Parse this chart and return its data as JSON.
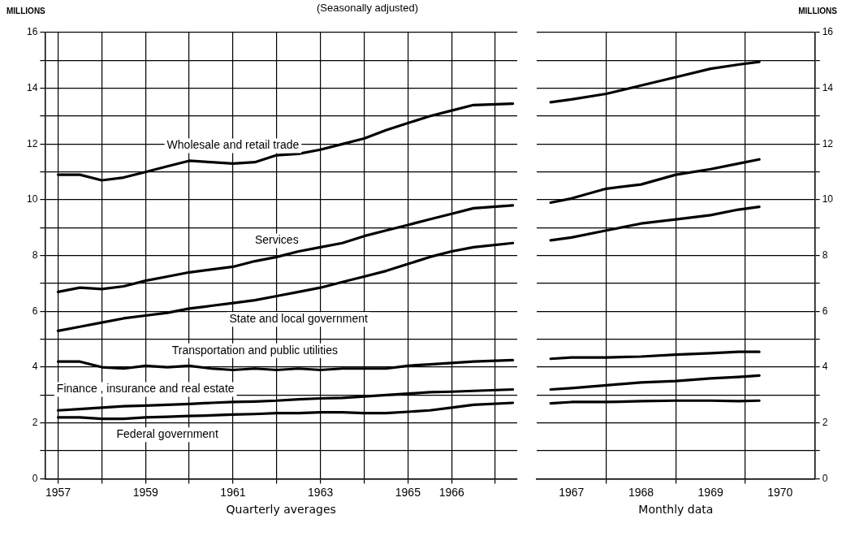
{
  "chart_data": [
    {
      "type": "line",
      "title": "(Seasonally adjusted)",
      "ylabel": "MILLIONS",
      "xlabel": "Quarterly averages",
      "xlim": [
        1956.7,
        1967.5
      ],
      "xticks": [
        1957,
        {
          "value": 1958,
          "label": null
        },
        1959,
        {
          "value": 1960,
          "label": null
        },
        1961,
        {
          "value": 1962,
          "label": null
        },
        1963,
        {
          "value": 1964,
          "label": null
        },
        1965,
        1966,
        {
          "value": 1967,
          "label": null
        }
      ],
      "ylim": [
        0,
        16
      ],
      "yticks": [
        0,
        {
          "value": 1,
          "label": null
        },
        2,
        {
          "value": 3,
          "label": null
        },
        4,
        {
          "value": 5,
          "label": null
        },
        6,
        {
          "value": 7,
          "label": null
        },
        8,
        {
          "value": 9,
          "label": null
        },
        10,
        {
          "value": 11,
          "label": null
        },
        12,
        {
          "value": 13,
          "label": null
        },
        14,
        {
          "value": 15,
          "label": null
        },
        16
      ],
      "grid": true,
      "legend": false,
      "marker": "none",
      "line_style": "solid",
      "x": [
        1957,
        1957.5,
        1958,
        1958.5,
        1959,
        1959.5,
        1960,
        1960.5,
        1961,
        1961.5,
        1962,
        1962.5,
        1963,
        1963.5,
        1964,
        1964.5,
        1965,
        1965.5,
        1966,
        1966.5,
        1967.4
      ],
      "series": [
        {
          "name": "Wholesale and retail trade",
          "color": "#000000",
          "values": [
            10.9,
            10.9,
            10.7,
            10.8,
            11.0,
            11.2,
            11.4,
            11.35,
            11.3,
            11.35,
            11.6,
            11.65,
            11.8,
            12.0,
            12.2,
            12.5,
            12.75,
            13.0,
            13.2,
            13.4,
            13.45
          ]
        },
        {
          "name": "Services",
          "color": "#000000",
          "values": [
            6.7,
            6.85,
            6.8,
            6.9,
            7.1,
            7.25,
            7.4,
            7.5,
            7.6,
            7.8,
            7.95,
            8.15,
            8.3,
            8.45,
            8.7,
            8.9,
            9.1,
            9.3,
            9.5,
            9.7,
            9.8
          ]
        },
        {
          "name": "State and local government",
          "color": "#000000",
          "values": [
            5.3,
            5.45,
            5.6,
            5.75,
            5.85,
            5.95,
            6.1,
            6.2,
            6.3,
            6.4,
            6.55,
            6.7,
            6.85,
            7.05,
            7.25,
            7.45,
            7.7,
            7.95,
            8.15,
            8.3,
            8.45
          ]
        },
        {
          "name": "Transportation and public utilities",
          "color": "#000000",
          "values": [
            4.2,
            4.2,
            4.0,
            3.95,
            4.05,
            4.0,
            4.05,
            3.95,
            3.9,
            3.95,
            3.9,
            3.95,
            3.9,
            3.95,
            3.95,
            3.95,
            4.05,
            4.1,
            4.15,
            4.2,
            4.25
          ]
        },
        {
          "name": "Finance , insurance and real estate",
          "color": "#000000",
          "values": [
            2.45,
            2.5,
            2.55,
            2.6,
            2.62,
            2.65,
            2.68,
            2.72,
            2.75,
            2.77,
            2.8,
            2.85,
            2.88,
            2.9,
            2.95,
            3.0,
            3.05,
            3.1,
            3.12,
            3.15,
            3.2
          ]
        },
        {
          "name": "Federal government",
          "color": "#000000",
          "values": [
            2.2,
            2.2,
            2.15,
            2.15,
            2.2,
            2.22,
            2.25,
            2.27,
            2.3,
            2.32,
            2.35,
            2.35,
            2.38,
            2.38,
            2.35,
            2.35,
            2.4,
            2.45,
            2.55,
            2.65,
            2.72
          ]
        }
      ]
    },
    {
      "type": "line",
      "ylabel": "MILLIONS",
      "xlabel": "Monthly data",
      "xlim": [
        1967,
        1971
      ],
      "xticks": [
        {
          "value": 1967.5,
          "label": "1967"
        },
        {
          "value": 1968,
          "label": null
        },
        {
          "value": 1968.5,
          "label": "1968"
        },
        {
          "value": 1969,
          "label": null
        },
        {
          "value": 1969.5,
          "label": "1969"
        },
        {
          "value": 1970,
          "label": null
        },
        {
          "value": 1970.5,
          "label": "1970"
        }
      ],
      "ylim": [
        0,
        16
      ],
      "yticks": [
        0,
        {
          "value": 1,
          "label": null
        },
        2,
        {
          "value": 3,
          "label": null
        },
        4,
        {
          "value": 5,
          "label": null
        },
        6,
        {
          "value": 7,
          "label": null
        },
        8,
        {
          "value": 9,
          "label": null
        },
        10,
        {
          "value": 11,
          "label": null
        },
        12,
        {
          "value": 13,
          "label": null
        },
        14,
        {
          "value": 15,
          "label": null
        },
        16
      ],
      "grid": true,
      "legend": false,
      "marker": "none",
      "line_style": "solid",
      "x": [
        1967.2,
        1967.5,
        1968,
        1968.5,
        1969,
        1969.5,
        1969.9,
        1970.2
      ],
      "series": [
        {
          "color": "#000000",
          "values": [
            13.5,
            13.6,
            13.8,
            14.1,
            14.4,
            14.7,
            14.85,
            14.95
          ]
        },
        {
          "color": "#000000",
          "values": [
            9.9,
            10.05,
            10.4,
            10.55,
            10.9,
            11.1,
            11.3,
            11.45
          ]
        },
        {
          "color": "#000000",
          "values": [
            8.55,
            8.65,
            8.9,
            9.15,
            9.3,
            9.45,
            9.65,
            9.75
          ]
        },
        {
          "color": "#000000",
          "values": [
            4.3,
            4.35,
            4.35,
            4.38,
            4.45,
            4.5,
            4.55,
            4.55
          ]
        },
        {
          "color": "#000000",
          "values": [
            3.2,
            3.25,
            3.35,
            3.45,
            3.5,
            3.6,
            3.65,
            3.7
          ]
        },
        {
          "color": "#000000",
          "values": [
            2.7,
            2.75,
            2.75,
            2.78,
            2.8,
            2.8,
            2.78,
            2.8
          ]
        }
      ]
    }
  ]
}
